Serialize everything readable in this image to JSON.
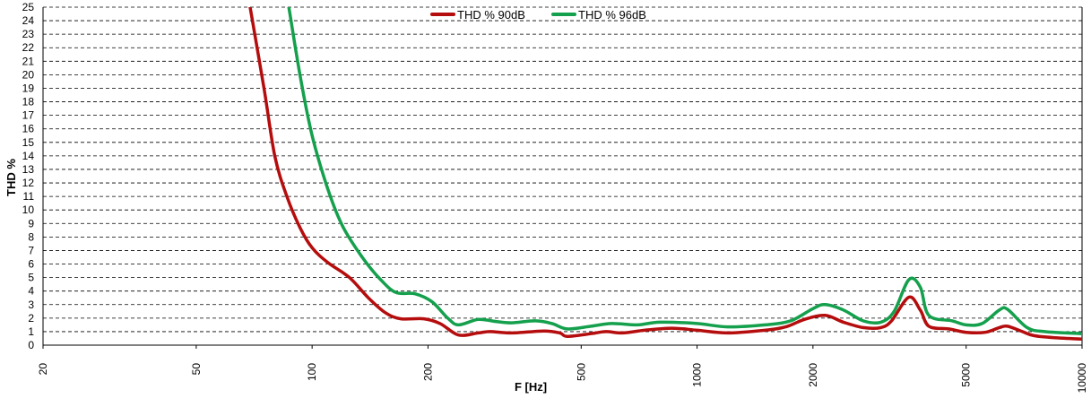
{
  "chart_data": {
    "type": "line",
    "xlabel": "F [Hz]",
    "ylabel": "THD %",
    "x_scale": "log",
    "xlim": [
      20,
      10000
    ],
    "ylim": [
      0,
      25
    ],
    "x_ticks": [
      "20",
      "50",
      "100",
      "200",
      "500",
      "1000",
      "2000",
      "5000",
      "10000"
    ],
    "y_ticks": [
      "0",
      "1",
      "2",
      "3",
      "4",
      "5",
      "6",
      "7",
      "8",
      "9",
      "10",
      "11",
      "12",
      "13",
      "14",
      "15",
      "16",
      "17",
      "18",
      "19",
      "20",
      "21",
      "22",
      "23",
      "24",
      "25"
    ],
    "grid": "horizontal dashed",
    "legend_position": "top",
    "series": [
      {
        "name": "THD % 90dB",
        "color": "#b50d0d",
        "points": [
          [
            69,
            25
          ],
          [
            75,
            19
          ],
          [
            80,
            14
          ],
          [
            86,
            11
          ],
          [
            93,
            8.7
          ],
          [
            100,
            7.2
          ],
          [
            110,
            6.1
          ],
          [
            125,
            5
          ],
          [
            140,
            3.5
          ],
          [
            155,
            2.4
          ],
          [
            170,
            1.95
          ],
          [
            195,
            1.95
          ],
          [
            215,
            1.6
          ],
          [
            240,
            0.75
          ],
          [
            270,
            0.9
          ],
          [
            290,
            1
          ],
          [
            330,
            0.9
          ],
          [
            400,
            1.05
          ],
          [
            440,
            0.9
          ],
          [
            460,
            0.65
          ],
          [
            530,
            0.85
          ],
          [
            580,
            1
          ],
          [
            640,
            0.9
          ],
          [
            730,
            1.1
          ],
          [
            860,
            1.25
          ],
          [
            1000,
            1.1
          ],
          [
            1200,
            0.9
          ],
          [
            1500,
            1.1
          ],
          [
            1700,
            1.35
          ],
          [
            1900,
            1.9
          ],
          [
            2150,
            2.2
          ],
          [
            2400,
            1.7
          ],
          [
            2700,
            1.3
          ],
          [
            3000,
            1.3
          ],
          [
            3200,
            1.8
          ],
          [
            3550,
            3.55
          ],
          [
            3800,
            2.6
          ],
          [
            4000,
            1.4
          ],
          [
            4500,
            1.2
          ],
          [
            5000,
            0.95
          ],
          [
            5600,
            0.95
          ],
          [
            6100,
            1.3
          ],
          [
            6400,
            1.4
          ],
          [
            7000,
            1
          ],
          [
            7500,
            0.7
          ],
          [
            8500,
            0.55
          ],
          [
            10000,
            0.45
          ]
        ]
      },
      {
        "name": "THD % 96dB",
        "color": "#14a04c",
        "points": [
          [
            87,
            25
          ],
          [
            93,
            20
          ],
          [
            100,
            15.5
          ],
          [
            110,
            11.5
          ],
          [
            120,
            8.8
          ],
          [
            135,
            6.5
          ],
          [
            150,
            4.9
          ],
          [
            165,
            3.9
          ],
          [
            185,
            3.8
          ],
          [
            205,
            3.2
          ],
          [
            225,
            2
          ],
          [
            240,
            1.5
          ],
          [
            270,
            1.9
          ],
          [
            300,
            1.75
          ],
          [
            330,
            1.65
          ],
          [
            380,
            1.8
          ],
          [
            420,
            1.6
          ],
          [
            460,
            1.2
          ],
          [
            530,
            1.4
          ],
          [
            600,
            1.6
          ],
          [
            700,
            1.5
          ],
          [
            800,
            1.7
          ],
          [
            1000,
            1.6
          ],
          [
            1200,
            1.35
          ],
          [
            1500,
            1.5
          ],
          [
            1750,
            1.8
          ],
          [
            2000,
            2.7
          ],
          [
            2150,
            3
          ],
          [
            2400,
            2.6
          ],
          [
            2700,
            1.8
          ],
          [
            3000,
            1.7
          ],
          [
            3250,
            2.5
          ],
          [
            3550,
            4.85
          ],
          [
            3800,
            4.3
          ],
          [
            4000,
            2.2
          ],
          [
            4600,
            1.8
          ],
          [
            5000,
            1.5
          ],
          [
            5500,
            1.6
          ],
          [
            6100,
            2.6
          ],
          [
            6400,
            2.65
          ],
          [
            7200,
            1.3
          ],
          [
            8000,
            1
          ],
          [
            10000,
            0.85
          ]
        ]
      }
    ]
  }
}
